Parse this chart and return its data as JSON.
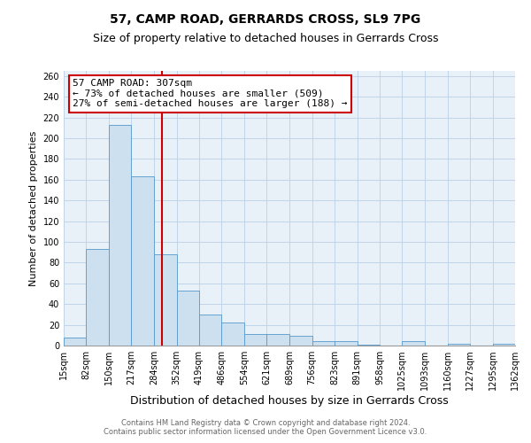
{
  "title": "57, CAMP ROAD, GERRARDS CROSS, SL9 7PG",
  "subtitle": "Size of property relative to detached houses in Gerrards Cross",
  "xlabel": "Distribution of detached houses by size in Gerrards Cross",
  "ylabel": "Number of detached properties",
  "bin_edges": [
    15,
    82,
    150,
    217,
    284,
    352,
    419,
    486,
    554,
    621,
    689,
    756,
    823,
    891,
    958,
    1025,
    1093,
    1160,
    1227,
    1295,
    1362
  ],
  "bin_labels": [
    "15sqm",
    "82sqm",
    "150sqm",
    "217sqm",
    "284sqm",
    "352sqm",
    "419sqm",
    "486sqm",
    "554sqm",
    "621sqm",
    "689sqm",
    "756sqm",
    "823sqm",
    "891sqm",
    "958sqm",
    "1025sqm",
    "1093sqm",
    "1160sqm",
    "1227sqm",
    "1295sqm",
    "1362sqm"
  ],
  "bar_heights": [
    8,
    93,
    213,
    163,
    88,
    53,
    30,
    22,
    11,
    11,
    9,
    4,
    4,
    1,
    0,
    4,
    0,
    2,
    0,
    2
  ],
  "bar_color": "#cce0f0",
  "bar_edge_color": "#5599cc",
  "property_size": 307,
  "vline_color": "#cc0000",
  "annotation_text": "57 CAMP ROAD: 307sqm\n← 73% of detached houses are smaller (509)\n27% of semi-detached houses are larger (188) →",
  "annotation_box_color": "#ffffff",
  "annotation_box_edge_color": "#cc0000",
  "ylim": [
    0,
    265
  ],
  "yticks": [
    0,
    20,
    40,
    60,
    80,
    100,
    120,
    140,
    160,
    180,
    200,
    220,
    240,
    260
  ],
  "grid_color": "#c0d4e8",
  "background_color": "#e8f0f8",
  "footer_line1": "Contains HM Land Registry data © Crown copyright and database right 2024.",
  "footer_line2": "Contains public sector information licensed under the Open Government Licence v3.0.",
  "title_fontsize": 10,
  "subtitle_fontsize": 9,
  "xlabel_fontsize": 9,
  "ylabel_fontsize": 8,
  "tick_fontsize": 7,
  "annot_fontsize": 8,
  "footer_fontsize": 6
}
